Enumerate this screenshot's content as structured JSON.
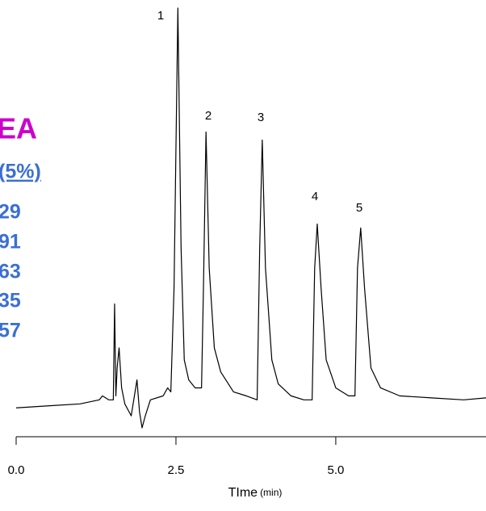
{
  "chart_data": {
    "type": "line",
    "xlabel": "TIme",
    "xlabel_unit": "(min)",
    "side_text": {
      "heading": "EA",
      "subheading": "(5%)",
      "items": [
        "29",
        "91",
        "63",
        "35",
        "57"
      ]
    },
    "peak_labels": [
      "1",
      "2",
      "3",
      "4",
      "5"
    ],
    "xlim": [
      0,
      7.35
    ],
    "ylim": [
      -5,
      100
    ],
    "xticks": [
      {
        "value": 0,
        "label": "0.0"
      },
      {
        "value": 2.5,
        "label": "2.5"
      },
      {
        "value": 5,
        "label": "5.0"
      }
    ],
    "series": [
      {
        "color": "#000000",
        "x": [
          0,
          0.5,
          1.0,
          1.3,
          1.35,
          1.45,
          1.52,
          1.54,
          1.56,
          1.58,
          1.61,
          1.65,
          1.7,
          1.8,
          1.85,
          1.89,
          1.93,
          1.97,
          2.02,
          2.1,
          2.3,
          2.37,
          2.42,
          2.47,
          2.53,
          2.58,
          2.63,
          2.7,
          2.8,
          2.9,
          2.93,
          2.97,
          3.02,
          3.1,
          3.2,
          3.4,
          3.6,
          3.77,
          3.81,
          3.85,
          3.9,
          4.0,
          4.1,
          4.3,
          4.5,
          4.63,
          4.67,
          4.71,
          4.77,
          4.85,
          5.0,
          5.2,
          5.3,
          5.34,
          5.39,
          5.45,
          5.55,
          5.7,
          6.0,
          6.5,
          7.0,
          7.35
        ],
        "values": [
          0,
          0.5,
          1,
          2,
          3,
          2,
          2,
          26,
          3,
          10,
          15,
          5,
          1,
          -2,
          3,
          7,
          -1,
          -5,
          -2,
          2,
          3,
          5,
          4,
          30,
          100,
          40,
          12,
          7,
          5,
          5,
          30,
          69,
          35,
          15,
          9,
          4,
          3,
          2,
          40,
          67,
          35,
          12,
          6,
          3,
          2,
          2,
          35,
          46,
          30,
          12,
          5,
          3,
          3,
          35,
          45,
          30,
          10,
          5,
          3,
          2.5,
          2,
          2.5
        ]
      }
    ]
  }
}
